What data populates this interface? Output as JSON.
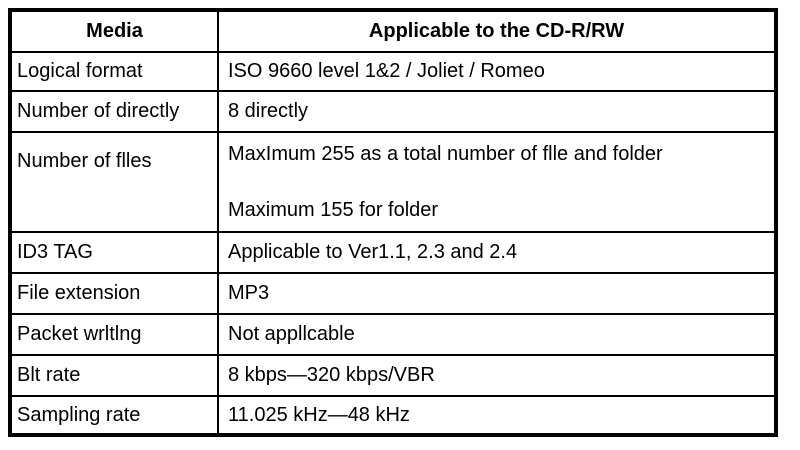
{
  "table": {
    "headers": {
      "media": "Media",
      "applicable": "Applicable to the CD-R/RW"
    },
    "rows": [
      {
        "label": "Logical format",
        "values": [
          "ISO 9660 level 1&2 / Joliet / Romeo"
        ]
      },
      {
        "label": "Number of directly",
        "values": [
          "8 directly"
        ]
      },
      {
        "label": "Number of flles",
        "values": [
          "MaxImum 255 as a total number of flle and folder",
          "Maximum 155 for folder"
        ]
      },
      {
        "label": "ID3 TAG",
        "values": [
          "Applicable to Ver1.1, 2.3 and 2.4"
        ]
      },
      {
        "label": "File extension",
        "values": [
          "MP3"
        ]
      },
      {
        "label": "Packet wrltlng",
        "values": [
          "Not appllcable"
        ]
      },
      {
        "label": "Blt rate",
        "values": [
          "8 kbps—320 kbps/VBR"
        ]
      },
      {
        "label": "Sampling rate",
        "values": [
          "11.025 kHz—48 kHz"
        ]
      }
    ],
    "colors": {
      "border": "#000000",
      "text": "#000000",
      "background": "#ffffff"
    }
  }
}
